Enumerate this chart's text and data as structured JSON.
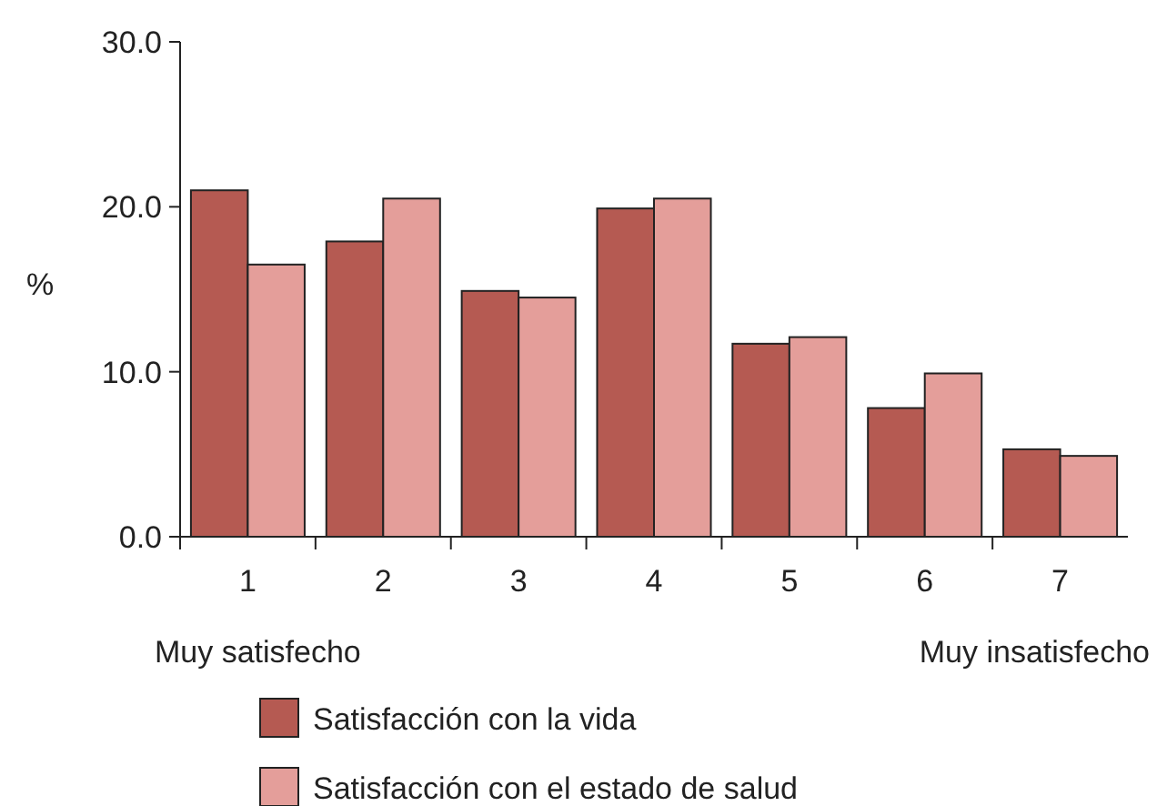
{
  "chart_data": {
    "type": "bar",
    "ylabel": "%",
    "categories": [
      "1",
      "2",
      "3",
      "4",
      "5",
      "6",
      "7"
    ],
    "series": [
      {
        "name": "Satisfacción con la vida",
        "color": "#b55a52",
        "values": [
          21.0,
          17.9,
          14.9,
          19.9,
          11.7,
          7.8,
          5.3
        ]
      },
      {
        "name": "Satisfacción con el estado de salud",
        "color": "#e49e9a",
        "values": [
          16.5,
          20.5,
          14.5,
          20.5,
          12.1,
          9.9,
          4.9
        ]
      }
    ],
    "ylim": [
      0,
      30
    ],
    "yticks": [
      {
        "value": 0,
        "label": "0.0"
      },
      {
        "value": 10,
        "label": "10.0"
      },
      {
        "value": 20,
        "label": "20.0"
      },
      {
        "value": 30,
        "label": "30.0"
      }
    ],
    "annotations": [
      "Muy satisfecho",
      "Muy insatisfecho"
    ],
    "grid": false,
    "legend": "bottom"
  }
}
